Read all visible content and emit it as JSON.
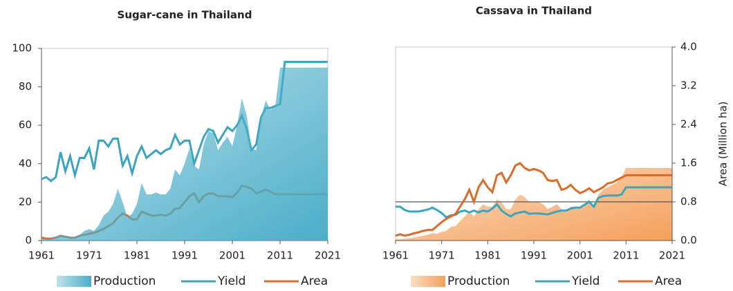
{
  "chart_data": [
    {
      "type": "line",
      "title": "Sugar-cane in Thailand",
      "x": [
        1961,
        1962,
        1963,
        1964,
        1965,
        1966,
        1967,
        1968,
        1969,
        1970,
        1971,
        1972,
        1973,
        1974,
        1975,
        1976,
        1977,
        1978,
        1979,
        1980,
        1981,
        1982,
        1983,
        1984,
        1985,
        1986,
        1987,
        1988,
        1989,
        1990,
        1991,
        1992,
        1993,
        1994,
        1995,
        1996,
        1997,
        1998,
        1999,
        2000,
        2001,
        2002,
        2003,
        2004,
        2005,
        2006,
        2007,
        2008,
        2009,
        2010,
        2011,
        2012,
        2013,
        2014,
        2015,
        2016,
        2017,
        2018,
        2019,
        2020,
        2021
      ],
      "xlim": [
        1961,
        2021
      ],
      "xticks": [
        1961,
        1971,
        1981,
        1991,
        2001,
        2011,
        2021
      ],
      "ylim": [
        0,
        100
      ],
      "yticks": [
        0,
        20,
        40,
        60,
        80,
        100
      ],
      "series": [
        {
          "name": "Production",
          "type": "area",
          "color": "#4aaec8",
          "values": [
            1,
            1,
            1,
            2,
            3,
            2.5,
            2,
            2,
            3,
            5,
            6,
            5,
            8,
            13,
            15,
            19,
            27,
            20,
            12,
            14,
            19,
            30,
            24,
            24,
            25,
            24,
            24,
            27,
            37,
            34,
            40,
            48,
            39,
            37,
            50,
            57,
            56,
            47,
            51,
            54,
            49,
            60,
            74,
            65,
            48,
            47,
            64,
            73,
            68,
            70,
            90,
            90,
            90,
            90,
            90,
            90,
            90,
            90,
            90,
            90,
            90
          ]
        },
        {
          "name": "Yield",
          "type": "line",
          "color": "#3aa5c2",
          "values": [
            32,
            33,
            31,
            33,
            46,
            36,
            44,
            34,
            43,
            43,
            48,
            37,
            52,
            52,
            49,
            53,
            53,
            39,
            44,
            35,
            44,
            49,
            43,
            45,
            47,
            45,
            47,
            48,
            55,
            50,
            52,
            52,
            40,
            47,
            54,
            58,
            57,
            51,
            55,
            59,
            57,
            60,
            65,
            58,
            47,
            50,
            64,
            69,
            69,
            70,
            71,
            93,
            93,
            93,
            93,
            93,
            93,
            93,
            93,
            93,
            93
          ]
        },
        {
          "name": "Area",
          "type": "line",
          "color": "#e06a25",
          "values": [
            1.5,
            1,
            1,
            1.5,
            2.5,
            2,
            1.5,
            1.5,
            2.5,
            3,
            3.5,
            4,
            5,
            6,
            7.5,
            9,
            12,
            14,
            13,
            11,
            11,
            15,
            14,
            13,
            13,
            13.5,
            13,
            14,
            16.5,
            17,
            20,
            23,
            24.5,
            20,
            23,
            24.5,
            24.5,
            23,
            23,
            23,
            22.5,
            25,
            28.5,
            28,
            27,
            24.5,
            25.5,
            26.5,
            25.5,
            24,
            24,
            24,
            24,
            24,
            24,
            24,
            24,
            24,
            24,
            24,
            24
          ]
        }
      ]
    },
    {
      "type": "line",
      "title": "Cassava in Thailand",
      "y2label": "Area (Million ha)",
      "x": [
        1961,
        1962,
        1963,
        1964,
        1965,
        1966,
        1967,
        1968,
        1969,
        1970,
        1971,
        1972,
        1973,
        1974,
        1975,
        1976,
        1977,
        1978,
        1979,
        1980,
        1981,
        1982,
        1983,
        1984,
        1985,
        1986,
        1987,
        1988,
        1989,
        1990,
        1991,
        1992,
        1993,
        1994,
        1995,
        1996,
        1997,
        1998,
        1999,
        2000,
        2001,
        2002,
        2003,
        2004,
        2005,
        2006,
        2007,
        2008,
        2009,
        2010,
        2011,
        2012,
        2013,
        2014,
        2015,
        2016,
        2017,
        2018,
        2019,
        2020,
        2021
      ],
      "xlim": [
        1961,
        2021
      ],
      "xticks": [
        1961,
        1971,
        1981,
        1991,
        2001,
        2011,
        2021
      ],
      "y2lim": [
        0,
        4
      ],
      "y2ticks": [
        {
          "value": 0,
          "label": "0.0"
        },
        {
          "value": 0.8,
          "label": "0.8"
        },
        {
          "value": 1.6,
          "label": "1.6"
        },
        {
          "value": 2.4,
          "label": "2.4"
        },
        {
          "value": 3.2,
          "label": "3.2"
        },
        {
          "value": 4,
          "label": "4.0"
        }
      ],
      "reference_line": 0.8,
      "series": [
        {
          "name": "Production",
          "type": "area",
          "axis": "y2",
          "color": "#f4a05a",
          "values": [
            0.03,
            0.03,
            0.04,
            0.05,
            0.06,
            0.08,
            0.1,
            0.12,
            0.15,
            0.14,
            0.18,
            0.2,
            0.28,
            0.3,
            0.4,
            0.5,
            0.6,
            0.5,
            0.65,
            0.75,
            0.7,
            0.7,
            0.85,
            0.8,
            0.65,
            0.65,
            0.85,
            0.95,
            0.9,
            0.8,
            0.8,
            0.8,
            0.75,
            0.65,
            0.7,
            0.75,
            0.65,
            0.6,
            0.7,
            0.7,
            0.7,
            0.75,
            0.85,
            0.72,
            0.95,
            1.05,
            1.1,
            1.15,
            1.2,
            1.3,
            1.5,
            1.5,
            1.5,
            1.5,
            1.5,
            1.5,
            1.5,
            1.5,
            1.5,
            1.5,
            1.5
          ]
        },
        {
          "name": "Yield",
          "type": "line",
          "axis": "y2",
          "color": "#3aa5c2",
          "values": [
            0.7,
            0.7,
            0.63,
            0.6,
            0.6,
            0.6,
            0.62,
            0.64,
            0.68,
            0.63,
            0.57,
            0.48,
            0.52,
            0.53,
            0.6,
            0.62,
            0.58,
            0.62,
            0.58,
            0.62,
            0.6,
            0.66,
            0.75,
            0.62,
            0.55,
            0.5,
            0.56,
            0.58,
            0.6,
            0.55,
            0.56,
            0.56,
            0.55,
            0.54,
            0.57,
            0.6,
            0.62,
            0.62,
            0.66,
            0.68,
            0.68,
            0.74,
            0.8,
            0.7,
            0.88,
            0.92,
            0.93,
            0.93,
            0.93,
            0.95,
            1.1,
            1.1,
            1.1,
            1.1,
            1.1,
            1.1,
            1.1,
            1.1,
            1.1,
            1.1,
            1.1
          ]
        },
        {
          "name": "Area",
          "type": "line",
          "axis": "y2",
          "color": "#e06a25",
          "values": [
            0.1,
            0.13,
            0.1,
            0.12,
            0.15,
            0.17,
            0.2,
            0.22,
            0.22,
            0.3,
            0.38,
            0.45,
            0.5,
            0.55,
            0.7,
            0.85,
            1.05,
            0.8,
            1.1,
            1.25,
            1.1,
            1.0,
            1.35,
            1.4,
            1.2,
            1.35,
            1.55,
            1.6,
            1.5,
            1.45,
            1.48,
            1.45,
            1.4,
            1.25,
            1.23,
            1.25,
            1.05,
            1.08,
            1.15,
            1.05,
            0.98,
            1.02,
            1.08,
            1.0,
            1.05,
            1.1,
            1.18,
            1.2,
            1.25,
            1.3,
            1.35,
            1.35,
            1.35,
            1.35,
            1.35,
            1.35,
            1.35,
            1.35,
            1.35,
            1.35,
            1.35
          ]
        }
      ]
    }
  ]
}
